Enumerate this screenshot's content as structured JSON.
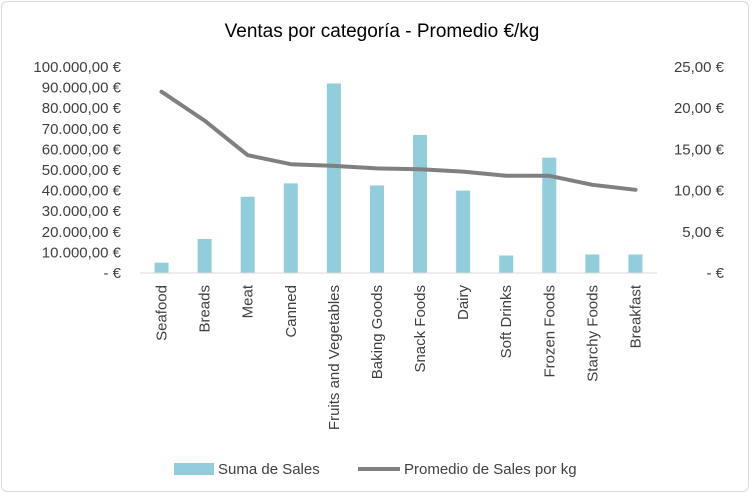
{
  "chart_data": {
    "type": "bar",
    "title": "Ventas por categoría - Promedio €/kg",
    "categories": [
      "Seafood",
      "Breads",
      "Meat",
      "Canned",
      "Fruits and Vegetables",
      "Baking Goods",
      "Snack Foods",
      "Dairy",
      "Soft Drinks",
      "Frozen Foods",
      "Starchy Foods",
      "Breakfast"
    ],
    "series": [
      {
        "name": "Suma de Sales",
        "type": "bar",
        "axis": "left",
        "color": "#92cddc",
        "values": [
          5000,
          16500,
          37000,
          43500,
          92000,
          42500,
          67000,
          40000,
          8500,
          56000,
          9000,
          9000
        ]
      },
      {
        "name": "Promedio de Sales por kg",
        "type": "line",
        "axis": "right",
        "color": "#808080",
        "values": [
          22.0,
          18.5,
          14.3,
          13.2,
          13.0,
          12.7,
          12.6,
          12.3,
          11.8,
          11.8,
          10.7,
          10.1
        ]
      }
    ],
    "y_left": {
      "min": 0,
      "max": 100000,
      "step": 10000,
      "tick_labels": [
        "-  €",
        "10.000,00 €",
        "20.000,00 €",
        "30.000,00 €",
        "40.000,00 €",
        "50.000,00 €",
        "60.000,00 €",
        "70.000,00 €",
        "80.000,00 €",
        "90.000,00 €",
        "100.000,00 €"
      ]
    },
    "y_right": {
      "min": 0,
      "max": 25,
      "step": 5,
      "tick_labels": [
        "-  €",
        "5,00 €",
        "10,00 €",
        "15,00 €",
        "20,00 €",
        "25,00 €"
      ]
    },
    "legend": "bottom",
    "grid": false
  }
}
